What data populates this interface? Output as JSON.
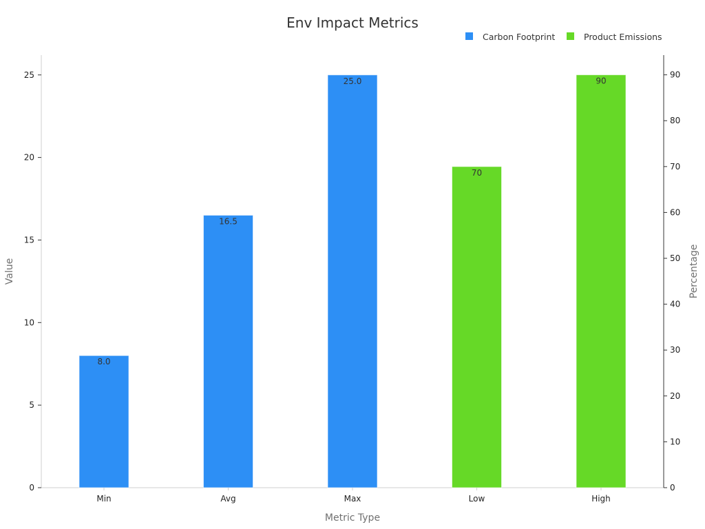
{
  "chart_data": {
    "type": "bar",
    "title": "Env Impact Metrics",
    "xlabel": "Metric Type",
    "ylabel": "Value",
    "y2label": "Percentage",
    "categories": [
      "Min",
      "Avg",
      "Max",
      "Low",
      "High"
    ],
    "ylim": [
      0,
      26.2
    ],
    "y2lim": [
      0,
      94.3
    ],
    "yticks": [
      0,
      5,
      10,
      15,
      20,
      25
    ],
    "y2ticks": [
      0,
      10,
      20,
      30,
      40,
      50,
      60,
      70,
      80,
      90
    ],
    "grid": false,
    "legend_position": "top-right",
    "series": [
      {
        "name": "Carbon Footprint",
        "axis": "left",
        "color": "#2d8ff5",
        "values": [
          8.0,
          16.5,
          25.0,
          null,
          null
        ],
        "labels": [
          "8.0",
          "16.5",
          "25.0",
          "",
          ""
        ]
      },
      {
        "name": "Product Emissions",
        "axis": "right",
        "color": "#66d927",
        "values": [
          null,
          null,
          null,
          70,
          90
        ],
        "labels": [
          "",
          "",
          "",
          "70",
          "90"
        ]
      }
    ]
  }
}
